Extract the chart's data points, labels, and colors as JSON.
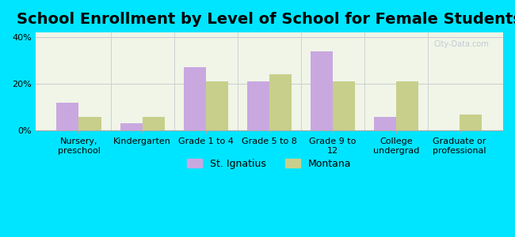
{
  "title": "School Enrollment by Level of School for Female Students",
  "categories": [
    "Nursery,\npreschool",
    "Kindergarten",
    "Grade 1 to 4",
    "Grade 5 to 8",
    "Grade 9 to\n12",
    "College\nundergrad",
    "Graduate or\nprofessional"
  ],
  "st_ignatius": [
    12,
    3,
    27,
    21,
    34,
    6,
    0
  ],
  "montana": [
    6,
    6,
    21,
    24,
    21,
    21,
    7
  ],
  "color_ignatius": "#c9a8e0",
  "color_montana": "#c8cf8a",
  "background_outer": "#00e5ff",
  "background_plot": "#f0f5e8",
  "ylim": [
    0,
    42
  ],
  "yticks": [
    0,
    20,
    40
  ],
  "ytick_labels": [
    "0%",
    "20%",
    "40%"
  ],
  "legend_labels": [
    "St. Ignatius",
    "Montana"
  ],
  "bar_width": 0.35,
  "title_fontsize": 14,
  "tick_fontsize": 8,
  "legend_fontsize": 9
}
